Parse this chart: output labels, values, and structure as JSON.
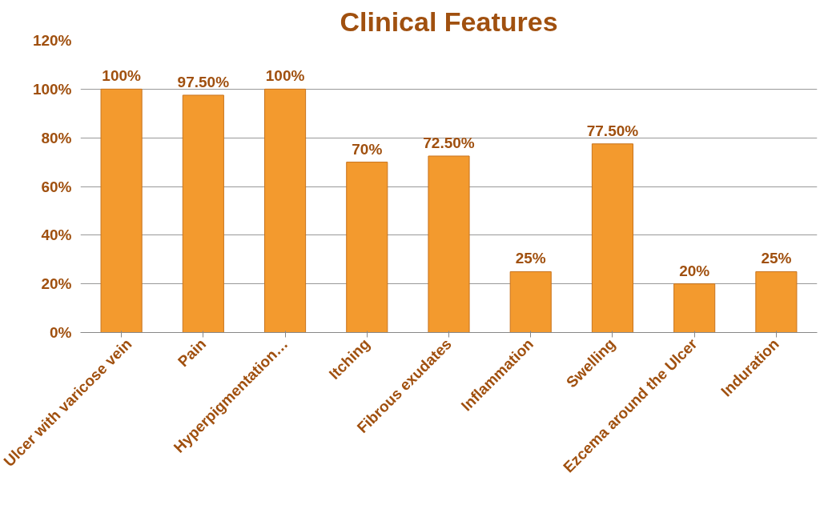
{
  "chart_data": {
    "type": "bar",
    "title": "Clinical Features",
    "categories": [
      "Ulcer with varicose vein",
      "Pain",
      "Hyperpigmentation…",
      "Itching",
      "Fibrous exudates",
      "Inflammation",
      "Swelling",
      "Ezcema around the Ulcer",
      "Induration"
    ],
    "values": [
      100,
      97.5,
      100,
      70,
      72.5,
      25,
      77.5,
      20,
      25
    ],
    "value_labels": [
      "100%",
      "97.50%",
      "100%",
      "70%",
      "72.50%",
      "25%",
      "77.50%",
      "20%",
      "25%"
    ],
    "color": "#f39a2e",
    "ylim": [
      0,
      120
    ],
    "yticks": [
      {
        "value": 0,
        "label": "0%"
      },
      {
        "value": 20,
        "label": "20%"
      },
      {
        "value": 40,
        "label": "40%"
      },
      {
        "value": 60,
        "label": "60%"
      },
      {
        "value": 80,
        "label": "80%"
      },
      {
        "value": 100,
        "label": "100%"
      },
      {
        "value": 120,
        "label": "120%"
      }
    ],
    "grid": "y"
  }
}
